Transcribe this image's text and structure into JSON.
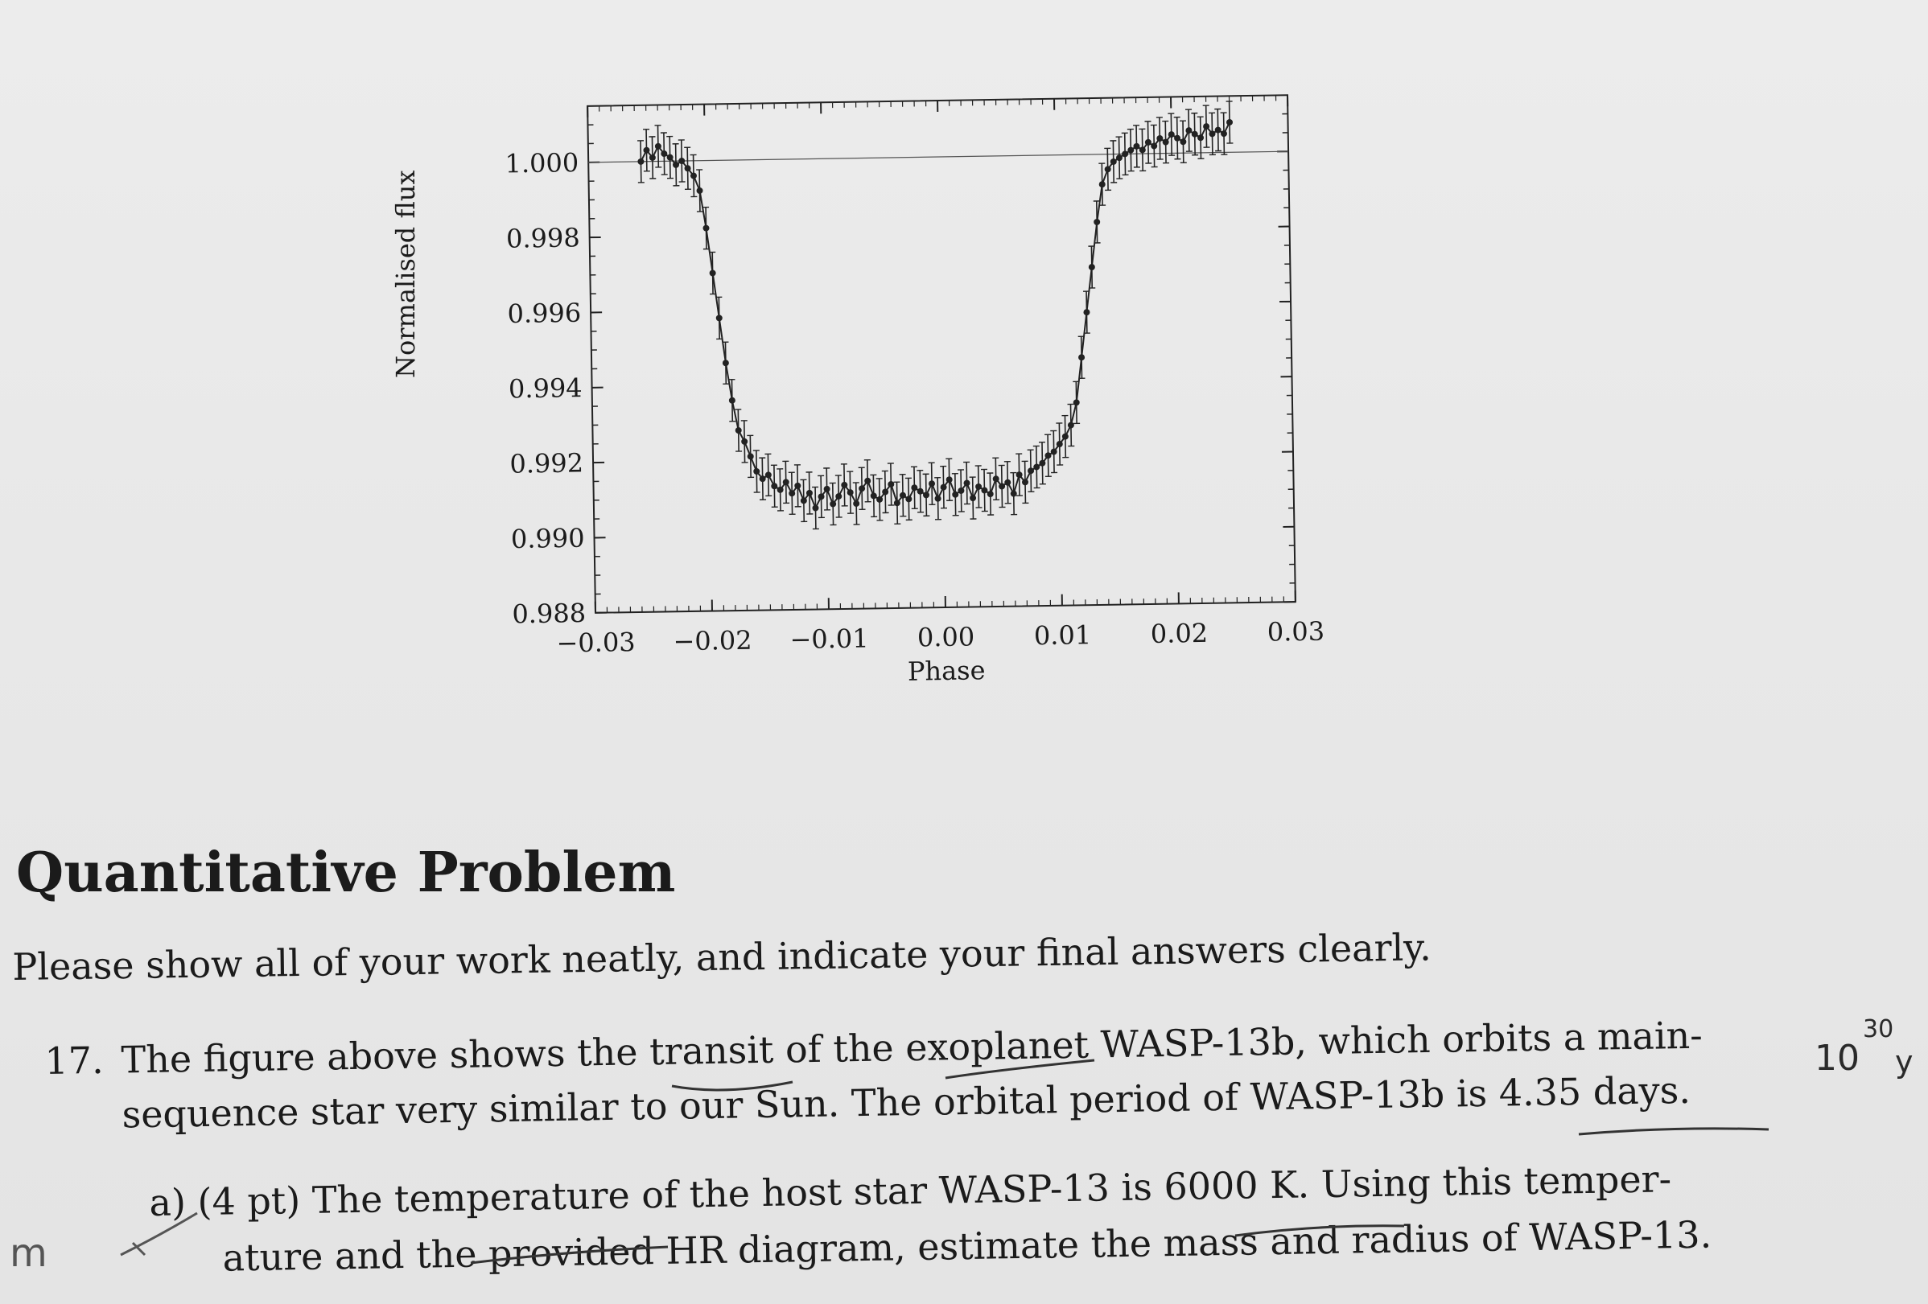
{
  "figure": {
    "ylabel": "Normalised flux",
    "xlabel": "Phase",
    "y_ticks": [
      "1.000",
      "0.998",
      "0.996",
      "0.994",
      "0.992",
      "0.990",
      "0.988"
    ],
    "x_ticks": [
      "−0.03",
      "−0.02",
      "−0.01",
      "0.00",
      "0.01",
      "0.02",
      "0.03"
    ]
  },
  "chart_data": {
    "type": "scatter",
    "title": "",
    "xlabel": "Phase",
    "ylabel": "Normalised flux",
    "xlim": [
      -0.03,
      0.03
    ],
    "ylim": [
      0.988,
      1.0015
    ],
    "grid": false,
    "error_bars": true,
    "model_curve": "transit light curve",
    "x": [
      -0.0255,
      -0.025,
      -0.0245,
      -0.024,
      -0.0235,
      -0.023,
      -0.0225,
      -0.022,
      -0.0215,
      -0.021,
      -0.0205,
      -0.02,
      -0.0195,
      -0.019,
      -0.0185,
      -0.018,
      -0.0175,
      -0.017,
      -0.0165,
      -0.016,
      -0.0155,
      -0.015,
      -0.0145,
      -0.014,
      -0.0135,
      -0.013,
      -0.0125,
      -0.012,
      -0.0115,
      -0.011,
      -0.0105,
      -0.01,
      -0.0095,
      -0.009,
      -0.0085,
      -0.008,
      -0.0075,
      -0.007,
      -0.0065,
      -0.006,
      -0.0055,
      -0.005,
      -0.0045,
      -0.004,
      -0.0035,
      -0.003,
      -0.0025,
      -0.002,
      -0.0015,
      -0.001,
      -0.0005,
      0.0,
      0.0005,
      0.001,
      0.0015,
      0.002,
      0.0025,
      0.003,
      0.0035,
      0.004,
      0.0045,
      0.005,
      0.0055,
      0.006,
      0.0065,
      0.007,
      0.0075,
      0.008,
      0.0085,
      0.009,
      0.0095,
      0.01,
      0.0105,
      0.011,
      0.0115,
      0.012,
      0.0125,
      0.013,
      0.0135,
      0.014,
      0.0145,
      0.015,
      0.0155,
      0.016,
      0.0165,
      0.017,
      0.0175,
      0.018,
      0.0185,
      0.019,
      0.0195,
      0.02,
      0.0205,
      0.021,
      0.0215,
      0.022,
      0.0225,
      0.023,
      0.0235,
      0.024,
      0.0245,
      0.025
    ],
    "y": [
      1.0,
      1.0003,
      1.0001,
      1.0004,
      1.0002,
      1.0001,
      0.9999,
      1.0,
      0.9998,
      0.9996,
      0.9992,
      0.9982,
      0.997,
      0.9958,
      0.9946,
      0.9936,
      0.9928,
      0.9925,
      0.9921,
      0.9917,
      0.9915,
      0.9916,
      0.9913,
      0.9912,
      0.9914,
      0.9911,
      0.9913,
      0.9909,
      0.9911,
      0.9907,
      0.991,
      0.9912,
      0.9908,
      0.991,
      0.9913,
      0.9911,
      0.9908,
      0.9912,
      0.9914,
      0.991,
      0.9909,
      0.9911,
      0.9913,
      0.9908,
      0.991,
      0.9909,
      0.9912,
      0.9911,
      0.991,
      0.9913,
      0.9909,
      0.9912,
      0.9914,
      0.991,
      0.9911,
      0.9913,
      0.9909,
      0.9912,
      0.9911,
      0.991,
      0.9914,
      0.9912,
      0.9913,
      0.991,
      0.9915,
      0.9913,
      0.9916,
      0.9917,
      0.9918,
      0.992,
      0.9921,
      0.9923,
      0.9925,
      0.9928,
      0.9934,
      0.9946,
      0.9958,
      0.997,
      0.9982,
      0.9992,
      0.9996,
      0.9998,
      0.9999,
      1.0,
      1.0001,
      1.0002,
      1.0001,
      1.0003,
      1.0002,
      1.0004,
      1.0003,
      1.0005,
      1.0004,
      1.0003,
      1.0006,
      1.0005,
      1.0004,
      1.0007,
      1.0005,
      1.0006,
      1.0005,
      1.0008
    ]
  },
  "heading": "Quantitative Problem",
  "instructions": "Please show all of your work neatly, and indicate your final answers clearly.",
  "question": {
    "number": "17.",
    "line1": "The figure above shows the transit of the exoplanet WASP-13b, which orbits a main-",
    "line2": "sequence star very similar to our Sun. The orbital period of WASP-13b is 4.35 days."
  },
  "part_a": {
    "line1": "a) (4 pt) The temperature of the host star WASP-13 is 6000 K. Using this temper-",
    "line2": "ature and the provided HR diagram, estimate the mass and radius of WASP-13."
  },
  "handwritten": {
    "base": "10",
    "exponent": "30",
    "trailing": "y",
    "margin": "m"
  }
}
